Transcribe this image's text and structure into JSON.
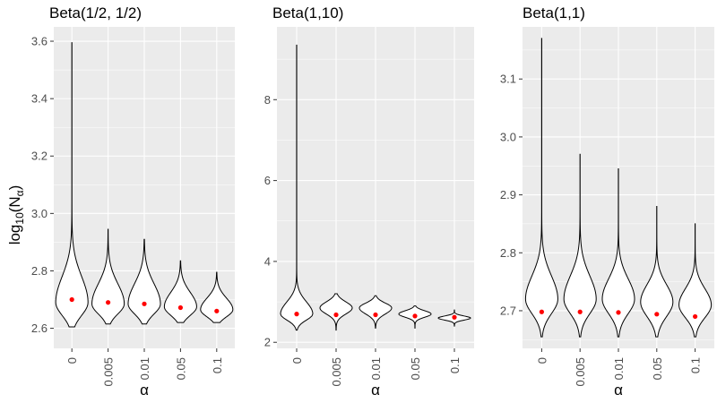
{
  "chart_data": [
    {
      "type": "violin",
      "title": "Beta(1/2, 1/2)",
      "xlabel": "α",
      "ylabel_main": "log",
      "ylabel_sub": "10",
      "ylabel_paren_open": "(N",
      "ylabel_alpha": "α",
      "ylabel_paren_close": ")",
      "categories": [
        "0",
        "0.005",
        "0.01",
        "0.05",
        "0.1"
      ],
      "ylim": [
        2.53,
        3.65
      ],
      "yticks": [
        2.6,
        2.8,
        3.0,
        3.2,
        3.4,
        3.6
      ],
      "ytick_labels": [
        "2.6",
        "2.8",
        "3.0",
        "3.2",
        "3.4",
        "3.6"
      ],
      "grid": true,
      "series": [
        {
          "min": 2.605,
          "max": 3.595,
          "mode": 2.69,
          "sd_low": 0.045,
          "sd_high": 0.09,
          "mean": 2.7
        },
        {
          "min": 2.615,
          "max": 2.945,
          "mode": 2.685,
          "sd_low": 0.035,
          "sd_high": 0.07,
          "mean": 2.69
        },
        {
          "min": 2.615,
          "max": 2.91,
          "mode": 2.685,
          "sd_low": 0.035,
          "sd_high": 0.07,
          "mean": 2.685
        },
        {
          "min": 2.62,
          "max": 2.835,
          "mode": 2.675,
          "sd_low": 0.03,
          "sd_high": 0.05,
          "mean": 2.672
        },
        {
          "min": 2.62,
          "max": 2.795,
          "mode": 2.665,
          "sd_low": 0.025,
          "sd_high": 0.04,
          "mean": 2.66
        }
      ]
    },
    {
      "type": "violin",
      "title": "Beta(1,10)",
      "xlabel": "α",
      "categories": [
        "0",
        "0.005",
        "0.01",
        "0.05",
        "0.1"
      ],
      "ylim": [
        1.85,
        9.8
      ],
      "yticks": [
        2,
        4,
        6,
        8
      ],
      "ytick_labels": [
        "2",
        "4",
        "6",
        "8"
      ],
      "grid": true,
      "series": [
        {
          "min": 2.3,
          "max": 9.35,
          "mode": 2.7,
          "sd_low": 0.15,
          "sd_high": 0.3,
          "mean": 2.7
        },
        {
          "min": 2.3,
          "max": 3.2,
          "mode": 2.85,
          "sd_low": 0.15,
          "sd_high": 0.15,
          "mean": 2.68
        },
        {
          "min": 2.35,
          "max": 3.15,
          "mode": 2.85,
          "sd_low": 0.15,
          "sd_high": 0.12,
          "mean": 2.68
        },
        {
          "min": 2.35,
          "max": 2.9,
          "mode": 2.7,
          "sd_low": 0.08,
          "sd_high": 0.08,
          "mean": 2.65
        },
        {
          "min": 2.4,
          "max": 2.8,
          "mode": 2.6,
          "sd_low": 0.05,
          "sd_high": 0.05,
          "mean": 2.62
        }
      ]
    },
    {
      "type": "violin",
      "title": "Beta(1,1)",
      "xlabel": "α",
      "categories": [
        "0",
        "0.005",
        "0.01",
        "0.05",
        "0.1"
      ],
      "ylim": [
        2.635,
        3.19
      ],
      "yticks": [
        2.7,
        2.8,
        2.9,
        3.0,
        3.1
      ],
      "ytick_labels": [
        "2.7",
        "2.8",
        "2.9",
        "3.0",
        "3.1"
      ],
      "grid": true,
      "series": [
        {
          "min": 2.655,
          "max": 3.17,
          "mode": 2.72,
          "sd_low": 0.025,
          "sd_high": 0.04,
          "mean": 2.698
        },
        {
          "min": 2.655,
          "max": 2.97,
          "mode": 2.72,
          "sd_low": 0.025,
          "sd_high": 0.04,
          "mean": 2.698
        },
        {
          "min": 2.655,
          "max": 2.945,
          "mode": 2.72,
          "sd_low": 0.025,
          "sd_high": 0.035,
          "mean": 2.697
        },
        {
          "min": 2.655,
          "max": 2.88,
          "mode": 2.715,
          "sd_low": 0.025,
          "sd_high": 0.03,
          "mean": 2.694
        },
        {
          "min": 2.655,
          "max": 2.85,
          "mode": 2.71,
          "sd_low": 0.022,
          "sd_high": 0.028,
          "mean": 2.69
        }
      ]
    }
  ]
}
